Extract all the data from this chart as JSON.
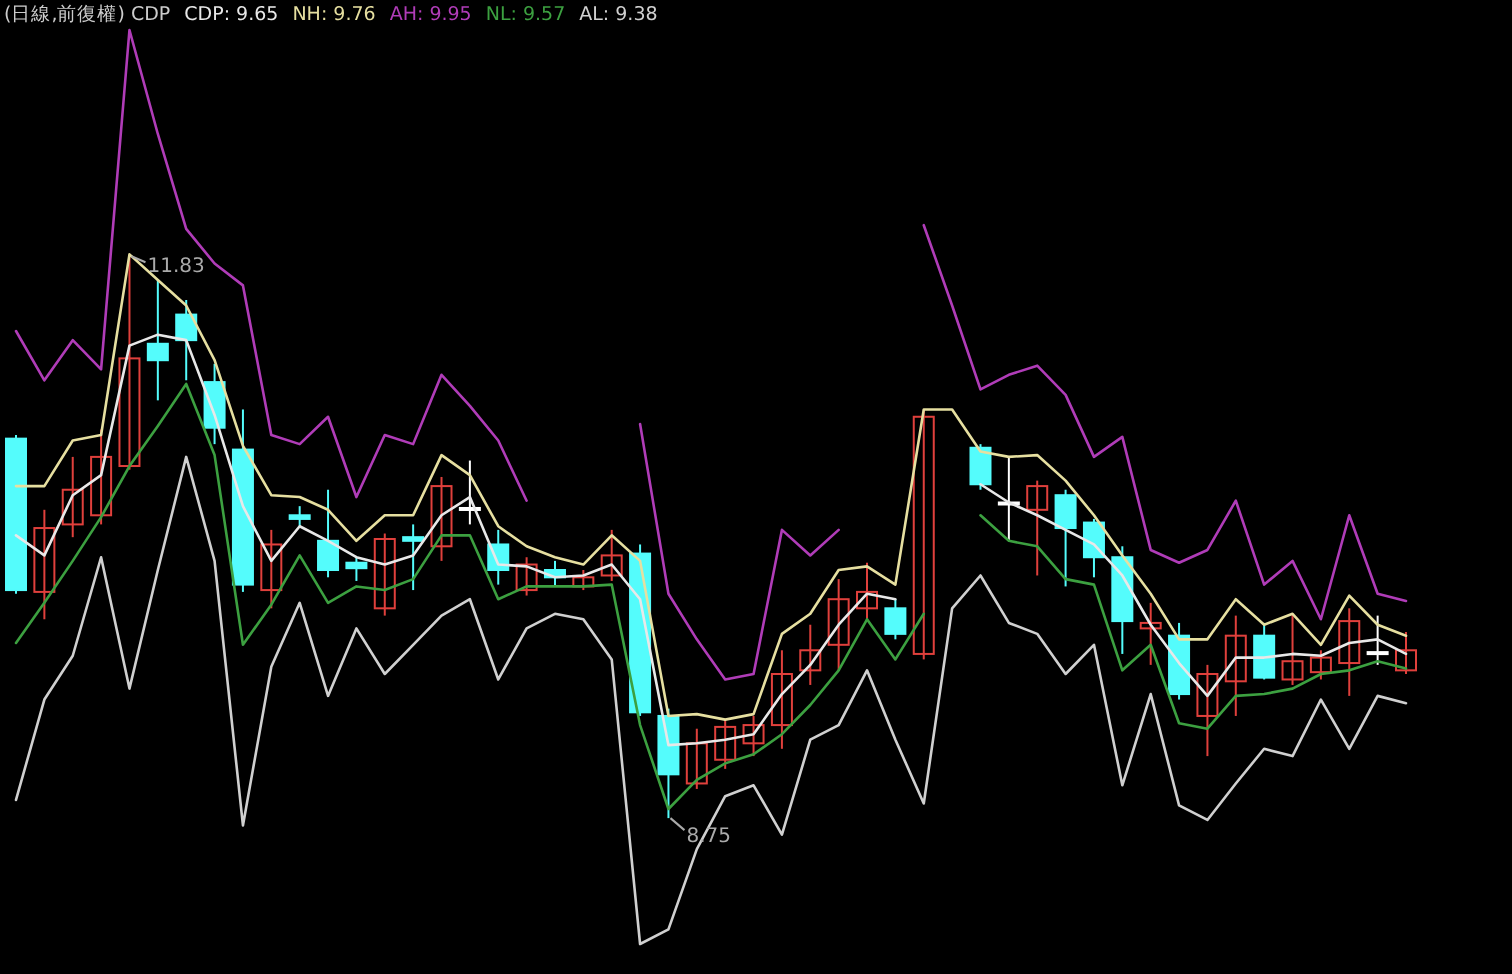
{
  "chart_data": {
    "type": "candlestick",
    "title": "(日線,前復權) CDP",
    "legend": "top left",
    "categories": [
      null,
      null,
      null,
      null,
      null,
      null,
      null,
      null,
      null,
      null,
      null,
      null,
      null,
      null,
      null,
      null,
      null,
      null,
      null,
      null,
      null,
      null,
      null,
      null,
      null,
      null,
      null,
      null,
      null,
      null,
      null,
      null,
      null,
      null,
      null,
      null,
      null,
      null,
      null,
      null,
      null,
      null,
      null,
      null,
      null,
      null,
      null,
      null,
      null,
      null
    ],
    "ohlc": [
      [
        10.83,
        10.85,
        9.98,
        10.0
      ],
      [
        9.99,
        10.44,
        9.84,
        10.34
      ],
      [
        10.36,
        10.73,
        10.29,
        10.55
      ],
      [
        10.41,
        10.88,
        10.36,
        10.73
      ],
      [
        10.68,
        11.83,
        10.66,
        11.27
      ],
      [
        11.35,
        11.7,
        11.04,
        11.26
      ],
      [
        11.51,
        11.59,
        11.15,
        11.37
      ],
      [
        11.14,
        11.24,
        10.8,
        10.89
      ],
      [
        10.77,
        10.99,
        9.99,
        10.03
      ],
      [
        10.0,
        10.33,
        9.9,
        10.25
      ],
      [
        10.41,
        10.46,
        10.35,
        10.39
      ],
      [
        10.27,
        10.55,
        10.07,
        10.11
      ],
      [
        10.15,
        10.18,
        10.05,
        10.12
      ],
      [
        9.9,
        10.31,
        9.86,
        10.28
      ],
      [
        10.29,
        10.36,
        10.0,
        10.27
      ],
      [
        10.24,
        10.62,
        10.16,
        10.57
      ],
      [
        10.45,
        10.71,
        10.36,
        10.45
      ],
      [
        10.25,
        10.33,
        10.03,
        10.11
      ],
      [
        10.0,
        10.18,
        9.97,
        10.14
      ],
      [
        10.11,
        10.16,
        10.02,
        10.07
      ],
      [
        10.02,
        10.11,
        10.0,
        10.07
      ],
      [
        10.08,
        10.33,
        10.05,
        10.19
      ],
      [
        10.2,
        10.25,
        9.31,
        9.33
      ],
      [
        9.31,
        9.35,
        8.75,
        8.99
      ],
      [
        8.94,
        9.24,
        8.91,
        9.16
      ],
      [
        9.07,
        9.29,
        9.02,
        9.25
      ],
      [
        9.16,
        9.31,
        9.09,
        9.26
      ],
      [
        9.26,
        9.67,
        9.13,
        9.54
      ],
      [
        9.56,
        9.81,
        9.48,
        9.67
      ],
      [
        9.7,
        10.06,
        9.56,
        9.95
      ],
      [
        9.9,
        10.15,
        9.84,
        9.99
      ],
      [
        9.9,
        9.95,
        9.73,
        9.76
      ],
      [
        9.65,
        10.99,
        9.62,
        10.95
      ],
      null,
      [
        10.78,
        10.8,
        10.55,
        10.58
      ],
      [
        10.48,
        10.73,
        10.27,
        10.48
      ],
      [
        10.44,
        10.6,
        10.08,
        10.57
      ],
      [
        10.52,
        10.55,
        10.02,
        10.34
      ],
      [
        10.37,
        10.39,
        10.07,
        10.18
      ],
      [
        10.18,
        10.24,
        9.65,
        9.83
      ],
      [
        9.79,
        9.93,
        9.59,
        9.82
      ],
      [
        9.75,
        9.82,
        9.4,
        9.43
      ],
      [
        9.31,
        9.59,
        9.09,
        9.54
      ],
      [
        9.5,
        9.86,
        9.31,
        9.75
      ],
      [
        9.75,
        9.82,
        9.51,
        9.52
      ],
      [
        9.51,
        9.87,
        9.48,
        9.61
      ],
      [
        9.55,
        9.67,
        9.51,
        9.63
      ],
      [
        9.6,
        9.9,
        9.42,
        9.83
      ],
      [
        9.66,
        9.86,
        9.59,
        9.66
      ],
      [
        9.56,
        9.77,
        9.54,
        9.67
      ]
    ],
    "colors": [
      "#54fcfc",
      "#e0403c",
      "#e0403c",
      "#e0403c",
      "#e0403c",
      "#54fcfc",
      "#54fcfc",
      "#54fcfc",
      "#54fcfc",
      "#e0403c",
      "#54fcfc",
      "#54fcfc",
      "#54fcfc",
      "#e0403c",
      "#54fcfc",
      "#e0403c",
      "#ffffff",
      "#54fcfc",
      "#e0403c",
      "#54fcfc",
      "#e0403c",
      "#e0403c",
      "#54fcfc",
      "#54fcfc",
      "#e0403c",
      "#e0403c",
      "#e0403c",
      "#e0403c",
      "#e0403c",
      "#e0403c",
      "#e0403c",
      "#54fcfc",
      "#e0403c",
      null,
      "#54fcfc",
      "#ffffff",
      "#e0403c",
      "#54fcfc",
      "#54fcfc",
      "#54fcfc",
      "#e0403c",
      "#54fcfc",
      "#e0403c",
      "#e0403c",
      "#54fcfc",
      "#e0403c",
      "#e0403c",
      "#e0403c",
      "#ffffff",
      "#e0403c"
    ],
    "series": [
      {
        "type": "line",
        "name": "CDP: 9.65",
        "color": "#e8e8e8",
        "values": [
          10.3,
          10.19,
          10.52,
          10.63,
          11.34,
          11.4,
          11.37,
          10.96,
          10.46,
          10.16,
          10.35,
          10.27,
          10.18,
          10.14,
          10.19,
          10.41,
          10.51,
          10.14,
          10.13,
          10.07,
          10.08,
          10.14,
          9.95,
          9.15,
          9.16,
          9.18,
          9.21,
          9.43,
          9.59,
          9.81,
          9.98,
          9.95,
          null,
          null,
          10.58,
          10.48,
          10.41,
          10.33,
          10.25,
          10.08,
          9.81,
          9.6,
          9.42,
          9.63,
          9.63,
          9.65,
          9.64,
          9.71,
          9.73,
          9.65
        ]
      },
      {
        "type": "line",
        "name": "NH: 9.76",
        "color": "#e6dfa0",
        "values": [
          10.57,
          10.57,
          10.82,
          10.85,
          11.84,
          11.7,
          11.56,
          11.26,
          10.79,
          10.52,
          10.51,
          10.44,
          10.27,
          10.41,
          10.41,
          10.74,
          10.63,
          10.35,
          10.24,
          10.18,
          10.14,
          10.3,
          10.16,
          9.31,
          9.32,
          9.29,
          9.32,
          9.76,
          9.87,
          10.11,
          10.13,
          10.03,
          10.99,
          10.99,
          10.76,
          10.73,
          10.74,
          10.6,
          10.41,
          10.19,
          9.98,
          9.73,
          9.73,
          9.95,
          9.81,
          9.87,
          9.7,
          9.97,
          9.81,
          9.75
        ]
      },
      {
        "type": "line",
        "name": "AH: 9.95",
        "color": "#b03cb8",
        "values": [
          11.42,
          11.15,
          11.37,
          11.21,
          13.07,
          12.5,
          11.98,
          11.79,
          11.67,
          10.85,
          10.8,
          10.95,
          10.51,
          10.85,
          10.8,
          11.18,
          11.01,
          10.82,
          10.49,
          null,
          null,
          null,
          10.91,
          9.98,
          9.73,
          9.51,
          9.54,
          10.33,
          10.19,
          10.33,
          null,
          null,
          12.0,
          11.56,
          11.1,
          11.18,
          11.23,
          11.07,
          10.73,
          10.84,
          10.22,
          10.15,
          10.22,
          10.49,
          10.03,
          10.16,
          9.84,
          10.41,
          9.98,
          9.94
        ]
      },
      {
        "type": "line",
        "name": "NL: 9.57",
        "color": "#3ca040",
        "values": [
          9.71,
          9.93,
          10.16,
          10.4,
          10.68,
          10.9,
          11.13,
          10.74,
          9.7,
          9.92,
          10.19,
          9.93,
          10.02,
          10.0,
          10.06,
          10.3,
          10.3,
          9.95,
          10.02,
          10.02,
          10.02,
          10.03,
          9.26,
          8.8,
          8.96,
          9.05,
          9.1,
          9.21,
          9.37,
          9.56,
          9.84,
          9.62,
          9.87,
          null,
          10.41,
          10.27,
          10.24,
          10.06,
          10.03,
          9.56,
          9.7,
          9.27,
          9.24,
          9.42,
          9.43,
          9.46,
          9.54,
          9.56,
          9.61,
          9.57
        ]
      },
      {
        "type": "line",
        "name": "AL: 9.38",
        "color": "#d0d0d0",
        "values": [
          8.85,
          9.4,
          9.64,
          10.18,
          9.46,
          10.11,
          10.73,
          10.16,
          8.71,
          9.58,
          9.93,
          9.42,
          9.79,
          9.54,
          9.7,
          9.86,
          9.95,
          9.51,
          9.79,
          9.87,
          9.84,
          9.62,
          8.06,
          8.14,
          8.58,
          8.87,
          8.93,
          8.66,
          9.18,
          9.26,
          9.56,
          9.18,
          8.83,
          9.9,
          10.08,
          9.82,
          9.76,
          9.54,
          9.7,
          8.93,
          9.43,
          8.82,
          8.74,
          8.94,
          9.13,
          9.09,
          9.4,
          9.13,
          9.42,
          9.38
        ]
      }
    ],
    "annotations": [
      "11.83",
      "8.75"
    ]
  }
}
